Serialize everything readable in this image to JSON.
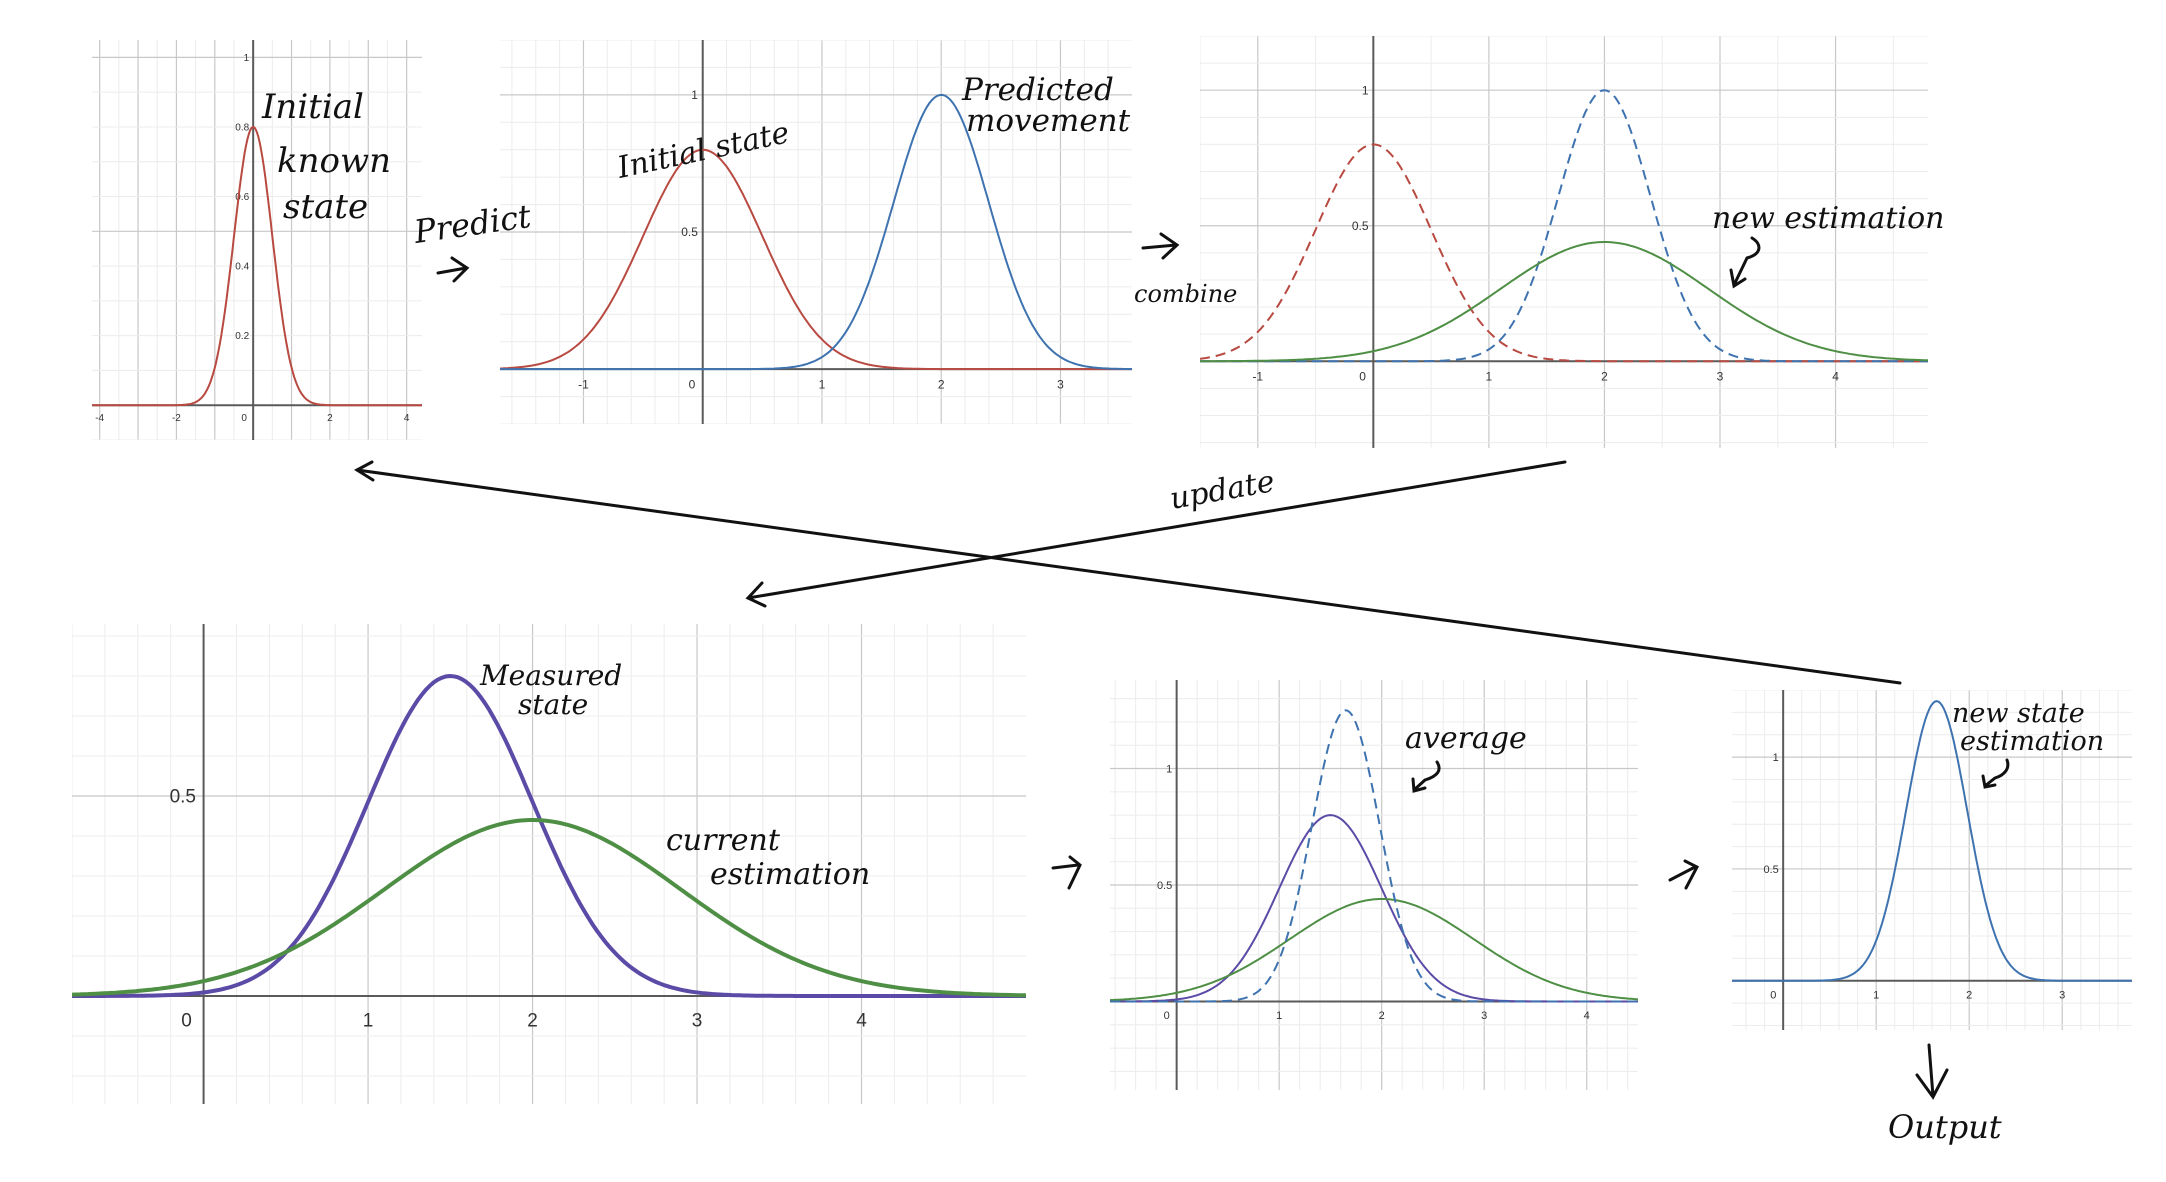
{
  "colors": {
    "red": "#b84a41",
    "blue": "#3e73b0",
    "green": "#4f8f45",
    "purple": "#5b4aa6",
    "grid_minor": "#ececec",
    "grid_major": "#c8c8c8",
    "axis": "#5a5a5a",
    "ink": "#111111"
  },
  "annotations": {
    "initial_known_state": [
      "Initial",
      "known",
      "state"
    ],
    "predict": "Predict",
    "initial_state": "Initial state",
    "predicted_movement": [
      "Predicted",
      "movement"
    ],
    "combine": "combine",
    "new_estimation": "new estimation",
    "update": "update",
    "measured_state": [
      "Measured",
      "state"
    ],
    "current_estimation": [
      "current",
      "estimation"
    ],
    "average": "average",
    "new_state_estimation": [
      "new state",
      "estimation"
    ],
    "output": "Output"
  },
  "chart_data": [
    {
      "id": "initial",
      "type": "line",
      "xlim": [
        -4.2,
        4.4
      ],
      "ylim": [
        -0.1,
        1.05
      ],
      "xticks": [
        -4,
        -2,
        0,
        2,
        4
      ],
      "xtick_labels": [
        "-4",
        "-2",
        "0",
        "2",
        "4"
      ],
      "yticks": [
        0.2,
        0.4,
        0.6,
        0.8,
        1
      ],
      "ytick_labels": [
        "0.2",
        "0.4",
        "0.6",
        "0.8",
        "1"
      ],
      "series": [
        {
          "mean": 0,
          "sd": 0.5,
          "peak": 0.8,
          "color": "red",
          "dashed": false
        }
      ]
    },
    {
      "id": "predict",
      "type": "line",
      "xlim": [
        -1.7,
        3.6
      ],
      "ylim": [
        -0.2,
        1.2
      ],
      "xticks": [
        -1,
        0,
        1,
        2,
        3
      ],
      "xtick_labels": [
        "-1",
        "0",
        "1",
        "2",
        "3"
      ],
      "yticks": [
        0.5,
        1
      ],
      "ytick_labels": [
        "0.5",
        "1"
      ],
      "series": [
        {
          "mean": 0,
          "sd": 0.5,
          "peak": 0.8,
          "color": "red",
          "dashed": false
        },
        {
          "mean": 2,
          "sd": 0.4,
          "peak": 1.0,
          "color": "blue",
          "dashed": false
        }
      ]
    },
    {
      "id": "combine",
      "type": "line",
      "xlim": [
        -1.5,
        4.8
      ],
      "ylim": [
        -0.32,
        1.2
      ],
      "xticks": [
        -1,
        0,
        1,
        2,
        3,
        4
      ],
      "xtick_labels": [
        "-1",
        "0",
        "1",
        "2",
        "3",
        "4"
      ],
      "yticks": [
        0.5,
        1
      ],
      "ytick_labels": [
        "0.5",
        "1"
      ],
      "series": [
        {
          "mean": 0,
          "sd": 0.5,
          "peak": 0.8,
          "color": "red",
          "dashed": true
        },
        {
          "mean": 2,
          "sd": 0.4,
          "peak": 1.0,
          "color": "blue",
          "dashed": true
        },
        {
          "mean": 2,
          "sd": 0.9,
          "peak": 0.44,
          "color": "green",
          "dashed": false
        }
      ]
    },
    {
      "id": "current",
      "type": "line",
      "xlim": [
        -0.8,
        5.0
      ],
      "ylim": [
        -0.27,
        0.93
      ],
      "xticks": [
        0,
        1,
        2,
        3,
        4
      ],
      "xtick_labels": [
        "0",
        "1",
        "2",
        "3",
        "4"
      ],
      "yticks": [
        0.5
      ],
      "ytick_labels": [
        "0.5"
      ],
      "series": [
        {
          "mean": 1.5,
          "sd": 0.5,
          "peak": 0.8,
          "color": "purple",
          "dashed": false
        },
        {
          "mean": 2,
          "sd": 0.9,
          "peak": 0.44,
          "color": "green",
          "dashed": false
        }
      ]
    },
    {
      "id": "average",
      "type": "line",
      "xlim": [
        -0.65,
        4.5
      ],
      "ylim": [
        -0.38,
        1.38
      ],
      "xticks": [
        0,
        1,
        2,
        3,
        4
      ],
      "xtick_labels": [
        "0",
        "1",
        "2",
        "3",
        "4"
      ],
      "yticks": [
        0.5,
        1
      ],
      "ytick_labels": [
        "0.5",
        "1"
      ],
      "series": [
        {
          "mean": 1.5,
          "sd": 0.5,
          "peak": 0.8,
          "color": "purple",
          "dashed": false
        },
        {
          "mean": 2,
          "sd": 0.9,
          "peak": 0.44,
          "color": "green",
          "dashed": false
        },
        {
          "mean": 1.65,
          "sd": 0.33,
          "peak": 1.25,
          "color": "blue",
          "dashed": true
        }
      ]
    },
    {
      "id": "output",
      "type": "line",
      "xlim": [
        -0.55,
        3.75
      ],
      "ylim": [
        -0.22,
        1.3
      ],
      "xticks": [
        0,
        1,
        2,
        3
      ],
      "xtick_labels": [
        "0",
        "1",
        "2",
        "3"
      ],
      "yticks": [
        0.5,
        1
      ],
      "ytick_labels": [
        "0.5",
        "1"
      ],
      "series": [
        {
          "mean": 1.65,
          "sd": 0.33,
          "peak": 1.25,
          "color": "blue",
          "dashed": false
        }
      ]
    }
  ]
}
